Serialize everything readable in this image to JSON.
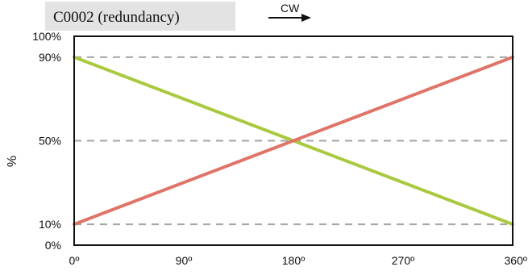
{
  "chart_data": {
    "type": "line",
    "title": "C0002 (redundancy)",
    "direction_label": "CW",
    "direction_icon": "arrow-right-icon",
    "xlabel": "",
    "ylabel": "%",
    "xlim": [
      0,
      360
    ],
    "ylim": [
      0,
      100
    ],
    "x_ticks": [
      {
        "value": 0,
        "label": "0º"
      },
      {
        "value": 90,
        "label": "90º"
      },
      {
        "value": 180,
        "label": "180º"
      },
      {
        "value": 270,
        "label": "270º"
      },
      {
        "value": 360,
        "label": "360º"
      }
    ],
    "y_ticks": [
      {
        "value": 0,
        "label": "0%"
      },
      {
        "value": 10,
        "label": "10%"
      },
      {
        "value": 50,
        "label": "50%"
      },
      {
        "value": 90,
        "label": "90%"
      },
      {
        "value": 100,
        "label": "100%"
      }
    ],
    "gridlines_y": [
      10,
      50,
      90
    ],
    "grid_style": "dashed",
    "legend": "none",
    "series": [
      {
        "color": "#a9c93f",
        "x": [
          0,
          360
        ],
        "y": [
          90,
          10
        ]
      },
      {
        "color": "#e07468",
        "x": [
          0,
          360
        ],
        "y": [
          10,
          90
        ]
      }
    ]
  }
}
